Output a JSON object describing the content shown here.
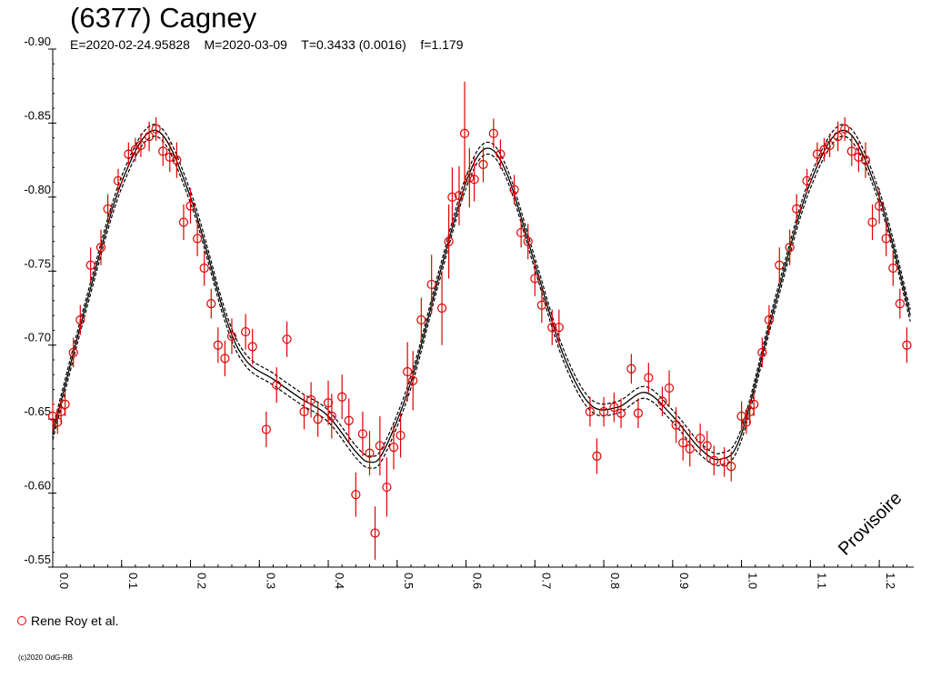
{
  "header": {
    "title": "(6377) Cagney",
    "subtitle": "E=2020-02-24.95828    M=2020-03-09    T=0.3433 (0.0016)    f=1.179"
  },
  "legend": {
    "label": "Rene Roy et al."
  },
  "footer": {
    "copyright": "(c)2020 OdG-RB"
  },
  "stamp": "Provisoire",
  "colors": {
    "points": "#e00000",
    "curve": "#000000",
    "axes": "#000000"
  },
  "chart_data": {
    "type": "scatter",
    "title": "(6377) Cagney",
    "xlabel": "",
    "ylabel": "",
    "xlim": [
      0.0,
      1.25
    ],
    "ylim": [
      -0.9,
      -0.55
    ],
    "y_inverted": true,
    "yticks": [
      "-0.90",
      "-0.85",
      "-0.80",
      "-0.75",
      "-0.70",
      "-0.65",
      "-0.60",
      "-0.55"
    ],
    "xticks": [
      "0.0",
      "0.1",
      "0.2",
      "0.3",
      "0.4",
      "0.5",
      "0.6",
      "0.7",
      "0.8",
      "0.9",
      "1.0",
      "1.1",
      "1.2"
    ],
    "grid": false,
    "legend_position": "bottom-left",
    "fit_curve": {
      "description_points_x": [
        0.0,
        0.05,
        0.1,
        0.15,
        0.2,
        0.25,
        0.28,
        0.32,
        0.36,
        0.4,
        0.44,
        0.46,
        0.48,
        0.52,
        0.56,
        0.6,
        0.63,
        0.66,
        0.7,
        0.74,
        0.78,
        0.82,
        0.86,
        0.9,
        0.94,
        0.97,
        1.0,
        1.05,
        1.1,
        1.15,
        1.2,
        1.245
      ],
      "description_points_y": [
        -0.64,
        -0.73,
        -0.81,
        -0.845,
        -0.8,
        -0.72,
        -0.69,
        -0.677,
        -0.664,
        -0.652,
        -0.628,
        -0.621,
        -0.628,
        -0.675,
        -0.745,
        -0.81,
        -0.833,
        -0.815,
        -0.755,
        -0.695,
        -0.66,
        -0.658,
        -0.668,
        -0.652,
        -0.63,
        -0.623,
        -0.64,
        -0.73,
        -0.81,
        -0.845,
        -0.8,
        -0.72
      ],
      "band": 0.004
    },
    "series": [
      {
        "name": "Rene Roy et al.",
        "points": [
          [
            0.0,
            -0.652,
            0.01
          ],
          [
            0.007,
            -0.648,
            0.008
          ],
          [
            0.012,
            -0.655,
            0.008
          ],
          [
            0.018,
            -0.66,
            0.008
          ],
          [
            0.03,
            -0.695,
            0.01
          ],
          [
            0.04,
            -0.717,
            0.01
          ],
          [
            0.055,
            -0.754,
            0.012
          ],
          [
            0.07,
            -0.766,
            0.012
          ],
          [
            0.08,
            -0.792,
            0.01
          ],
          [
            0.095,
            -0.811,
            0.008
          ],
          [
            0.11,
            -0.829,
            0.008
          ],
          [
            0.12,
            -0.832,
            0.008
          ],
          [
            0.128,
            -0.835,
            0.008
          ],
          [
            0.14,
            -0.841,
            0.01
          ],
          [
            0.15,
            -0.846,
            0.008
          ],
          [
            0.16,
            -0.831,
            0.01
          ],
          [
            0.17,
            -0.827,
            0.01
          ],
          [
            0.18,
            -0.825,
            0.012
          ],
          [
            0.19,
            -0.783,
            0.012
          ],
          [
            0.2,
            -0.794,
            0.012
          ],
          [
            0.21,
            -0.772,
            0.012
          ],
          [
            0.22,
            -0.752,
            0.012
          ],
          [
            0.23,
            -0.728,
            0.01
          ],
          [
            0.24,
            -0.7,
            0.012
          ],
          [
            0.25,
            -0.691,
            0.012
          ],
          [
            0.26,
            -0.706,
            0.012
          ],
          [
            0.28,
            -0.709,
            0.012
          ],
          [
            0.29,
            -0.699,
            0.012
          ],
          [
            0.31,
            -0.643,
            0.012
          ],
          [
            0.325,
            -0.673,
            0.012
          ],
          [
            0.34,
            -0.704,
            0.012
          ],
          [
            0.365,
            -0.655,
            0.012
          ],
          [
            0.375,
            -0.663,
            0.012
          ],
          [
            0.385,
            -0.65,
            0.012
          ],
          [
            0.4,
            -0.661,
            0.015
          ],
          [
            0.405,
            -0.652,
            0.015
          ],
          [
            0.42,
            -0.665,
            0.015
          ],
          [
            0.43,
            -0.649,
            0.015
          ],
          [
            0.44,
            -0.599,
            0.015
          ],
          [
            0.45,
            -0.64,
            0.015
          ],
          [
            0.46,
            -0.627,
            0.015
          ],
          [
            0.468,
            -0.573,
            0.018
          ],
          [
            0.475,
            -0.632,
            0.02
          ],
          [
            0.485,
            -0.604,
            0.02
          ],
          [
            0.495,
            -0.631,
            0.015
          ],
          [
            0.505,
            -0.639,
            0.015
          ],
          [
            0.515,
            -0.682,
            0.02
          ],
          [
            0.523,
            -0.676,
            0.02
          ],
          [
            0.535,
            -0.717,
            0.015
          ],
          [
            0.55,
            -0.741,
            0.02
          ],
          [
            0.565,
            -0.725,
            0.025
          ],
          [
            0.575,
            -0.77,
            0.025
          ],
          [
            0.58,
            -0.8,
            0.02
          ],
          [
            0.59,
            -0.801,
            0.02
          ],
          [
            0.598,
            -0.843,
            0.035
          ],
          [
            0.605,
            -0.813,
            0.02
          ],
          [
            0.612,
            -0.812,
            0.015
          ],
          [
            0.625,
            -0.822,
            0.012
          ],
          [
            0.64,
            -0.843,
            0.01
          ],
          [
            0.65,
            -0.829,
            0.01
          ],
          [
            0.67,
            -0.805,
            0.01
          ],
          [
            0.68,
            -0.776,
            0.01
          ],
          [
            0.69,
            -0.77,
            0.012
          ],
          [
            0.7,
            -0.745,
            0.012
          ],
          [
            0.71,
            -0.727,
            0.012
          ],
          [
            0.725,
            -0.712,
            0.012
          ],
          [
            0.735,
            -0.712,
            0.012
          ],
          [
            0.78,
            -0.655,
            0.01
          ],
          [
            0.79,
            -0.625,
            0.012
          ],
          [
            0.8,
            -0.655,
            0.01
          ],
          [
            0.815,
            -0.658,
            0.01
          ],
          [
            0.825,
            -0.654,
            0.01
          ],
          [
            0.84,
            -0.684,
            0.01
          ],
          [
            0.85,
            -0.654,
            0.01
          ],
          [
            0.865,
            -0.678,
            0.01
          ],
          [
            0.885,
            -0.662,
            0.01
          ],
          [
            0.895,
            -0.671,
            0.012
          ],
          [
            0.905,
            -0.646,
            0.012
          ],
          [
            0.915,
            -0.634,
            0.012
          ],
          [
            0.925,
            -0.63,
            0.012
          ],
          [
            0.94,
            -0.637,
            0.01
          ],
          [
            0.95,
            -0.632,
            0.01
          ],
          [
            0.96,
            -0.622,
            0.01
          ],
          [
            0.975,
            -0.621,
            0.01
          ],
          [
            0.985,
            -0.618,
            0.01
          ],
          [
            1.0,
            -0.652,
            0.01
          ],
          [
            1.007,
            -0.648,
            0.008
          ],
          [
            1.012,
            -0.655,
            0.008
          ],
          [
            1.018,
            -0.66,
            0.008
          ],
          [
            1.03,
            -0.695,
            0.01
          ],
          [
            1.04,
            -0.717,
            0.01
          ],
          [
            1.055,
            -0.754,
            0.012
          ],
          [
            1.07,
            -0.766,
            0.012
          ],
          [
            1.08,
            -0.792,
            0.01
          ],
          [
            1.095,
            -0.811,
            0.008
          ],
          [
            1.11,
            -0.829,
            0.008
          ],
          [
            1.12,
            -0.832,
            0.008
          ],
          [
            1.128,
            -0.835,
            0.008
          ],
          [
            1.14,
            -0.841,
            0.01
          ],
          [
            1.15,
            -0.846,
            0.008
          ],
          [
            1.16,
            -0.831,
            0.01
          ],
          [
            1.17,
            -0.827,
            0.01
          ],
          [
            1.18,
            -0.825,
            0.012
          ],
          [
            1.19,
            -0.783,
            0.012
          ],
          [
            1.2,
            -0.794,
            0.012
          ],
          [
            1.21,
            -0.772,
            0.012
          ],
          [
            1.22,
            -0.752,
            0.012
          ],
          [
            1.23,
            -0.728,
            0.01
          ],
          [
            1.24,
            -0.7,
            0.012
          ]
        ]
      }
    ]
  }
}
